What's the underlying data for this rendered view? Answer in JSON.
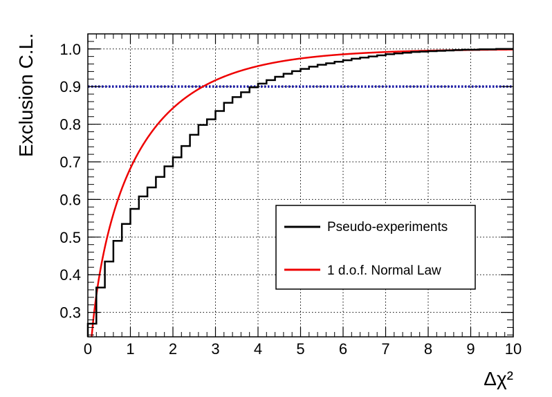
{
  "chart_data": {
    "type": "line",
    "title": "",
    "xlabel": "Δχ²",
    "ylabel": "Exclusion C.L.",
    "xlim": [
      0,
      10
    ],
    "ylim": [
      0.235,
      1.04
    ],
    "grid": true,
    "x_ticks": [
      "0",
      "1",
      "2",
      "3",
      "4",
      "5",
      "6",
      "7",
      "8",
      "9",
      "10"
    ],
    "y_ticks": [
      "0.3",
      "0.4",
      "0.5",
      "0.6",
      "0.7",
      "0.8",
      "0.9",
      "1.0"
    ],
    "legend_position": "lower-right",
    "series": [
      {
        "name": "Pseudo-experiments",
        "style": "step",
        "color": "#000000",
        "x": [
          0.0,
          0.2,
          0.4,
          0.6,
          0.8,
          1.0,
          1.2,
          1.4,
          1.6,
          1.8,
          2.0,
          2.2,
          2.4,
          2.6,
          2.8,
          3.0,
          3.2,
          3.4,
          3.6,
          3.8,
          4.0,
          4.2,
          4.4,
          4.6,
          4.8,
          5.0,
          5.2,
          5.4,
          5.6,
          5.8,
          6.0,
          6.2,
          6.4,
          6.6,
          6.8,
          7.0,
          7.2,
          7.4,
          7.6,
          7.8,
          8.0,
          8.2,
          8.4,
          8.6,
          8.8,
          9.0,
          9.2,
          9.4,
          9.6,
          9.8
        ],
        "values": [
          0.27,
          0.366,
          0.435,
          0.49,
          0.535,
          0.575,
          0.608,
          0.632,
          0.66,
          0.688,
          0.712,
          0.742,
          0.772,
          0.798,
          0.813,
          0.835,
          0.857,
          0.872,
          0.885,
          0.898,
          0.908,
          0.917,
          0.926,
          0.934,
          0.941,
          0.947,
          0.953,
          0.958,
          0.962,
          0.966,
          0.97,
          0.974,
          0.977,
          0.98,
          0.983,
          0.986,
          0.988,
          0.99,
          0.992,
          0.993,
          0.994,
          0.995,
          0.996,
          0.997,
          0.998,
          0.998,
          0.999,
          0.999,
          1.0,
          1.0
        ]
      },
      {
        "name": "1 d.o.f. Normal Law",
        "style": "line",
        "color": "#ee0000",
        "function": "erf(sqrt(x/2))"
      },
      {
        "name": "",
        "style": "dotted",
        "color": "#1a1aa6",
        "constant": 0.9
      }
    ]
  }
}
